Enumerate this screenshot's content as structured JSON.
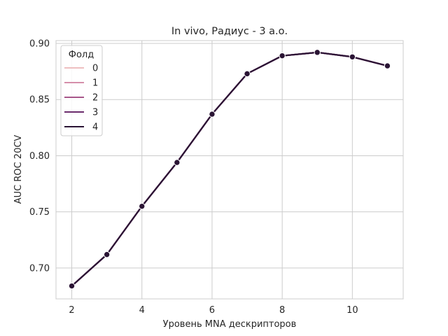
{
  "chart_data": {
    "type": "line",
    "title": "In vivo, Радиус - 3 а.о.",
    "xlabel": "Уровень MNA дескрипторов",
    "ylabel": "AUC ROC 20CV",
    "xlim": [
      1.55,
      11.45
    ],
    "ylim": [
      0.6725,
      0.9025
    ],
    "xticks": [
      2,
      4,
      6,
      8,
      10
    ],
    "yticks": [
      0.7,
      0.75,
      0.8,
      0.85,
      0.9
    ],
    "ytick_labels": [
      "0.70",
      "0.75",
      "0.80",
      "0.85",
      "0.90"
    ],
    "grid": true,
    "legend": {
      "title": "Фолд",
      "placement": "top-left",
      "entries": [
        "0",
        "1",
        "2",
        "3",
        "4"
      ]
    },
    "x": [
      2,
      3,
      4,
      5,
      6,
      7,
      8,
      9,
      10,
      11
    ],
    "series": [
      {
        "name": "0",
        "color": "#eebfc0",
        "values": [
          0.684,
          0.712,
          0.755,
          0.794,
          0.837,
          0.873,
          0.889,
          0.892,
          0.888,
          0.88
        ]
      },
      {
        "name": "1",
        "color": "#d58faa",
        "values": [
          0.684,
          0.712,
          0.755,
          0.794,
          0.837,
          0.873,
          0.889,
          0.892,
          0.888,
          0.88
        ]
      },
      {
        "name": "2",
        "color": "#a8578a",
        "values": [
          0.684,
          0.712,
          0.755,
          0.794,
          0.837,
          0.873,
          0.889,
          0.892,
          0.888,
          0.88
        ]
      },
      {
        "name": "3",
        "color": "#6b2c6c",
        "values": [
          0.684,
          0.712,
          0.755,
          0.794,
          0.837,
          0.873,
          0.889,
          0.892,
          0.888,
          0.88
        ]
      },
      {
        "name": "4",
        "color": "#2a1434",
        "values": [
          0.684,
          0.712,
          0.755,
          0.794,
          0.837,
          0.873,
          0.889,
          0.892,
          0.888,
          0.88
        ]
      }
    ]
  }
}
